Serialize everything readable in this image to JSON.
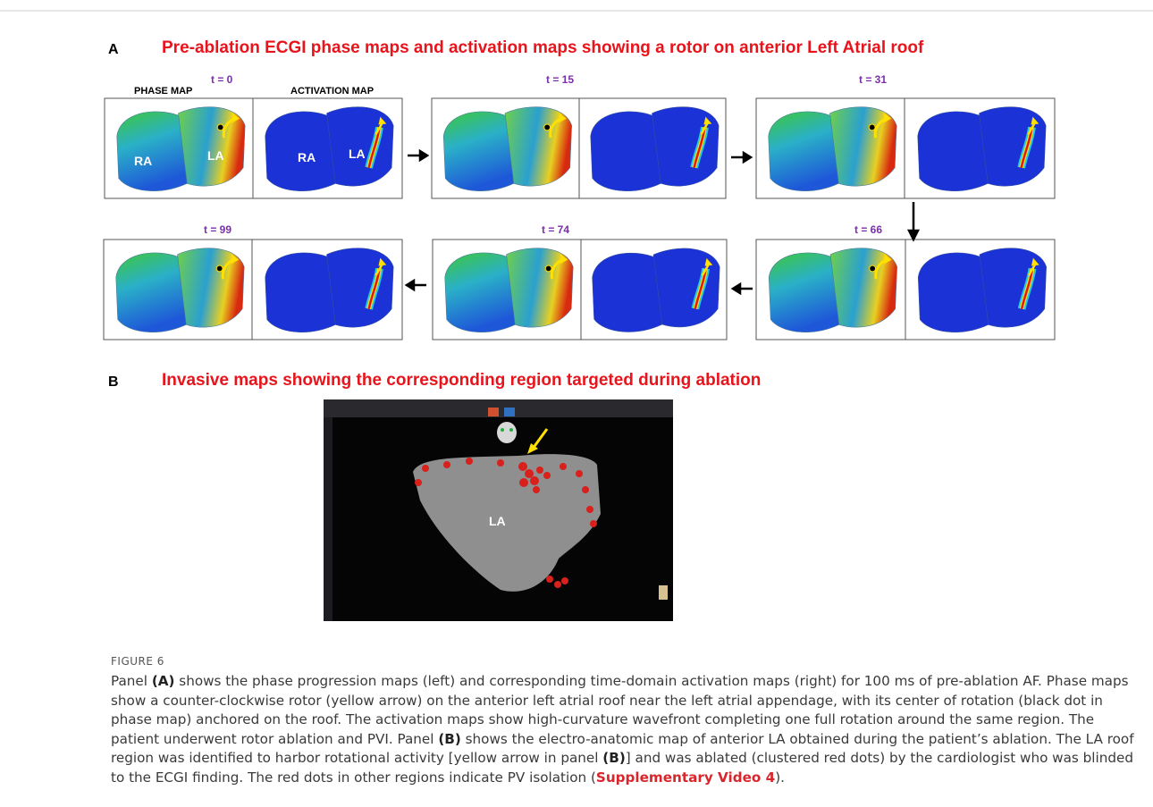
{
  "panel_a": {
    "letter": "A",
    "title": "Pre-ablation ECGI phase maps and activation maps showing a rotor on anterior Left Atrial roof",
    "column_labels": [
      "PHASE MAP",
      "ACTIVATION MAP"
    ],
    "time_labels": [
      "t = 0",
      "t = 15",
      "t = 31",
      "t = 99",
      "t = 74",
      "t = 66"
    ],
    "chamber_labels": [
      "RA",
      "LA",
      "RA",
      "LA"
    ]
  },
  "panel_b": {
    "letter": "B",
    "title": "Invasive maps showing the corresponding region targeted during ablation",
    "image_label": "LA"
  },
  "caption": {
    "figure_label": "FIGURE 6",
    "segments": [
      "Panel ",
      "(A)",
      " shows the phase progression maps (left) and corresponding time-domain activation maps (right) for 100 ms of pre-ablation AF. Phase maps show a counter-clockwise rotor (yellow arrow) on the anterior left atrial roof near the left atrial appendage, with its center of rotation (black dot in phase map) anchored on the roof. The activation maps show high-curvature wavefront completing one full rotation around the same region. The patient underwent rotor ablation and PVI. Panel ",
      "(B)",
      " shows the electro-anatomic map of anterior LA obtained during the patient’s ablation. The LA roof region was identified to harbor rotational activity [yellow arrow in panel ",
      "(B)",
      "] and was ablated (clustered red dots) by the cardiologist who was blinded to the ECGI finding. The red dots in other regions indicate PV isolation (",
      "Supplementary Video 4",
      ")."
    ]
  }
}
